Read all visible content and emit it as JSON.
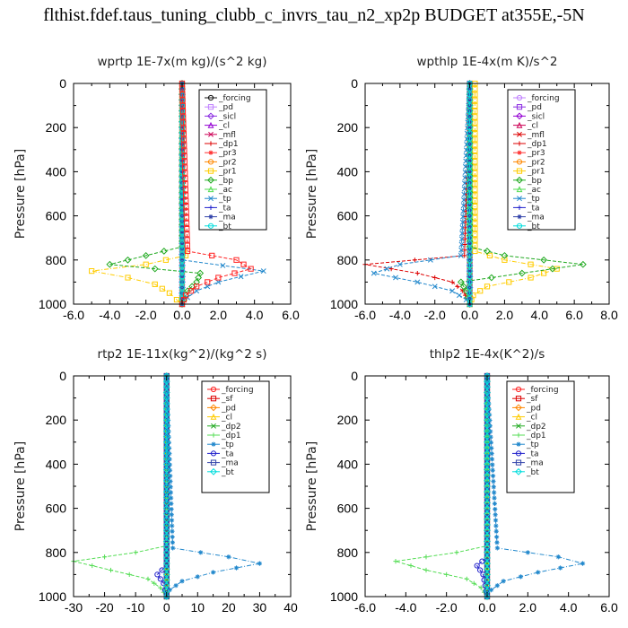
{
  "title": "flthist.fdef.taus_tuning_clubb_c_invrs_tau_n2_xp2p  BUDGET at355E,-5N",
  "chart_data": [
    {
      "type": "line",
      "title": "wprtp   1E-7x(m kg)/(s^2 kg)",
      "ylabel": "Pressure [hPa]",
      "xlim": [
        -6,
        6
      ],
      "ylim": [
        1000,
        0
      ],
      "xticks": [
        "-6.0",
        "-4.0",
        "-2.0",
        "0.0",
        "2.0",
        "4.0",
        "6.0"
      ],
      "yticks": [
        "0",
        "200",
        "400",
        "600",
        "800",
        "1000"
      ],
      "series": [
        {
          "name": "_forcing",
          "color": "#111111",
          "p": [
            0,
            100,
            200,
            300,
            400,
            500,
            600,
            700,
            800,
            900,
            1000
          ],
          "x": [
            0,
            0,
            0,
            0,
            0,
            0,
            0,
            0,
            0,
            0,
            0
          ]
        },
        {
          "name": "_pd",
          "color": "#c080ff",
          "p": [
            0,
            500,
            1000
          ],
          "x": [
            0,
            0,
            0
          ]
        },
        {
          "name": "_sicl",
          "color": "#8a2be2",
          "p": [
            0,
            500,
            1000
          ],
          "x": [
            0,
            0,
            0
          ]
        },
        {
          "name": "_cl",
          "color": "#9400d3",
          "p": [
            0,
            500,
            1000
          ],
          "x": [
            0,
            0,
            0
          ]
        },
        {
          "name": "_mfl",
          "color": "#cc0055",
          "p": [
            0,
            500,
            1000
          ],
          "x": [
            0,
            0,
            0
          ]
        },
        {
          "name": "_dp1",
          "color": "#dd0000",
          "p": [
            0,
            500,
            1000
          ],
          "x": [
            0,
            0,
            0
          ]
        },
        {
          "name": "_pr3",
          "color": "#ff3333",
          "p": [
            0,
            500,
            1000
          ],
          "x": [
            0,
            0,
            0
          ]
        },
        {
          "name": "_pr2",
          "color": "#ff8800",
          "p": [
            0,
            500,
            1000
          ],
          "x": [
            0,
            0,
            0
          ]
        },
        {
          "name": "_pr1",
          "color": "#ffcc00",
          "p": [
            0,
            740,
            780,
            820,
            850,
            880,
            910,
            950,
            980,
            1000
          ],
          "x": [
            0,
            0,
            0.2,
            -2.0,
            -5.0,
            -3.0,
            -1.5,
            -0.7,
            -0.3,
            0
          ]
        },
        {
          "name": "_bp",
          "color": "#22aa22",
          "p": [
            0,
            740,
            780,
            820,
            860,
            900,
            940,
            980,
            1000
          ],
          "x": [
            0,
            0,
            -2.0,
            -4.0,
            1.0,
            0.8,
            0.3,
            0.1,
            0
          ]
        },
        {
          "name": "_ac",
          "color": "#55dd55",
          "p": [
            0,
            500,
            1000
          ],
          "x": [
            0,
            0,
            0
          ]
        },
        {
          "name": "_tp",
          "color": "#2288cc",
          "p": [
            0,
            800,
            850,
            900,
            940,
            970,
            1000
          ],
          "x": [
            0,
            0,
            4.5,
            2.0,
            0.8,
            0.3,
            0
          ]
        },
        {
          "name": "_ta",
          "color": "#2222cc",
          "p": [
            0,
            500,
            1000
          ],
          "x": [
            0,
            0,
            0
          ]
        },
        {
          "name": "_ma",
          "color": "#3344aa",
          "p": [
            0,
            500,
            1000
          ],
          "x": [
            0,
            0,
            0
          ]
        },
        {
          "name": "_bt",
          "color": "#00dddd",
          "p": [
            0,
            500,
            1000
          ],
          "x": [
            0,
            0,
            0
          ]
        },
        {
          "name": "",
          "color": "#ff2222",
          "p": [
            0,
            760,
            800,
            840,
            880,
            920,
            960,
            1000
          ],
          "x": [
            0,
            0.3,
            3.0,
            3.8,
            2.0,
            0.8,
            0.2,
            0
          ]
        }
      ]
    },
    {
      "type": "line",
      "title": "wpthlp   1E-4x(m K)/s^2",
      "ylabel": "Pressure [hPa]",
      "xlim": [
        -6,
        8
      ],
      "ylim": [
        1000,
        0
      ],
      "xticks": [
        "-6.0",
        "-4.0",
        "-2.0",
        "0.0",
        "2.0",
        "4.0",
        "6.0",
        "8.0"
      ],
      "yticks": [
        "0",
        "200",
        "400",
        "600",
        "800",
        "1000"
      ],
      "series": [
        {
          "name": "_forcing",
          "color": "#c080ff",
          "p": [
            0,
            500,
            1000
          ],
          "x": [
            0,
            0,
            0
          ]
        },
        {
          "name": "_pd",
          "color": "#8a2be2",
          "p": [
            0,
            500,
            1000
          ],
          "x": [
            0,
            0,
            0
          ]
        },
        {
          "name": "_sicl",
          "color": "#9400d3",
          "p": [
            0,
            500,
            1000
          ],
          "x": [
            0,
            0,
            0
          ]
        },
        {
          "name": "_cl",
          "color": "#cc0055",
          "p": [
            0,
            500,
            1000
          ],
          "x": [
            0,
            0,
            0
          ]
        },
        {
          "name": "_mfl",
          "color": "#dd0000",
          "p": [
            0,
            500,
            1000
          ],
          "x": [
            0,
            0,
            0
          ]
        },
        {
          "name": "_dp1",
          "color": "#dd0000",
          "p": [
            0,
            780,
            820,
            860,
            900,
            940,
            980,
            1000
          ],
          "x": [
            0,
            -0.3,
            -6.0,
            -3.0,
            -1.0,
            -0.4,
            -0.1,
            0
          ]
        },
        {
          "name": "_pr3",
          "color": "#ff3333",
          "p": [
            0,
            500,
            1000
          ],
          "x": [
            0,
            0,
            0
          ]
        },
        {
          "name": "_pr2",
          "color": "#ff8800",
          "p": [
            0,
            500,
            1000
          ],
          "x": [
            0,
            0,
            0
          ]
        },
        {
          "name": "_pr1",
          "color": "#ffcc00",
          "p": [
            0,
            760,
            800,
            840,
            880,
            920,
            960,
            1000
          ],
          "x": [
            0.3,
            0.3,
            2.0,
            5.0,
            3.5,
            1.0,
            0.2,
            0
          ]
        },
        {
          "name": "_bp",
          "color": "#22aa22",
          "p": [
            0,
            740,
            780,
            820,
            860,
            900,
            940,
            1000
          ],
          "x": [
            0,
            0,
            2.0,
            6.5,
            3.0,
            -0.5,
            -0.2,
            0
          ]
        },
        {
          "name": "_ac",
          "color": "#55dd55",
          "p": [
            0,
            500,
            1000
          ],
          "x": [
            0,
            0,
            0
          ]
        },
        {
          "name": "_tp",
          "color": "#2288cc",
          "p": [
            0,
            780,
            820,
            860,
            900,
            940,
            980,
            1000
          ],
          "x": [
            0,
            -0.5,
            -4.0,
            -5.5,
            -3.0,
            -1.0,
            -0.2,
            0
          ]
        },
        {
          "name": "_ta",
          "color": "#2222cc",
          "p": [
            0,
            500,
            1000
          ],
          "x": [
            0,
            0,
            0
          ]
        },
        {
          "name": "_ma",
          "color": "#3344aa",
          "p": [
            0,
            500,
            1000
          ],
          "x": [
            0,
            0,
            0
          ]
        },
        {
          "name": "_bt",
          "color": "#00dddd",
          "p": [
            0,
            500,
            1000
          ],
          "x": [
            0,
            0,
            0
          ]
        }
      ]
    },
    {
      "type": "line",
      "title": "rtp2   1E-11x(kg^2)/(kg^2 s)",
      "ylabel": "Pressure [hPa]",
      "xlim": [
        -30,
        40
      ],
      "ylim": [
        1000,
        0
      ],
      "xticks": [
        "-30",
        "-20",
        "-10",
        "0",
        "10",
        "20",
        "30",
        "40"
      ],
      "yticks": [
        "0",
        "200",
        "400",
        "600",
        "800",
        "1000"
      ],
      "series": [
        {
          "name": "_forcing",
          "color": "#ff2222",
          "p": [
            0,
            500,
            1000
          ],
          "x": [
            0,
            0,
            0
          ]
        },
        {
          "name": "_sf",
          "color": "#dd0000",
          "p": [
            0,
            500,
            1000
          ],
          "x": [
            0,
            0,
            0
          ]
        },
        {
          "name": "_pd",
          "color": "#ff8800",
          "p": [
            0,
            500,
            1000
          ],
          "x": [
            0,
            0,
            0
          ]
        },
        {
          "name": "_cl",
          "color": "#ffcc00",
          "p": [
            0,
            500,
            1000
          ],
          "x": [
            0,
            0,
            0
          ]
        },
        {
          "name": "_dp2",
          "color": "#22aa22",
          "p": [
            0,
            500,
            1000
          ],
          "x": [
            0,
            0,
            0
          ]
        },
        {
          "name": "_dp1",
          "color": "#55dd55",
          "p": [
            0,
            770,
            800,
            840,
            880,
            920,
            960,
            1000
          ],
          "x": [
            0,
            0,
            -10.0,
            -30.0,
            -18.0,
            -6.0,
            -2.0,
            0
          ]
        },
        {
          "name": "_tp",
          "color": "#2288cc",
          "p": [
            0,
            780,
            820,
            850,
            890,
            930,
            970,
            1000
          ],
          "x": [
            0,
            2.0,
            20.0,
            30.0,
            15.0,
            5.0,
            1.0,
            0
          ]
        },
        {
          "name": "_ta",
          "color": "#2222cc",
          "p": [
            0,
            860,
            900,
            940,
            1000
          ],
          "x": [
            0,
            0,
            -3.0,
            -1.0,
            0
          ]
        },
        {
          "name": "_ma",
          "color": "#3344aa",
          "p": [
            0,
            500,
            1000
          ],
          "x": [
            0,
            0,
            0
          ]
        },
        {
          "name": "_bt",
          "color": "#00dddd",
          "p": [
            0,
            500,
            1000
          ],
          "x": [
            0,
            0,
            0
          ]
        }
      ]
    },
    {
      "type": "line",
      "title": "thlp2   1E-4x(K^2)/s",
      "ylabel": "Pressure [hPa]",
      "xlim": [
        -6,
        6
      ],
      "ylim": [
        1000,
        0
      ],
      "xticks": [
        "-6.0",
        "-4.0",
        "-2.0",
        "0.0",
        "2.0",
        "4.0",
        "6.0"
      ],
      "yticks": [
        "0",
        "200",
        "400",
        "600",
        "800",
        "1000"
      ],
      "series": [
        {
          "name": "_forcing",
          "color": "#ff2222",
          "p": [
            0,
            500,
            1000
          ],
          "x": [
            0,
            0,
            0
          ]
        },
        {
          "name": "_sf",
          "color": "#dd0000",
          "p": [
            0,
            500,
            1000
          ],
          "x": [
            0,
            0,
            0
          ]
        },
        {
          "name": "_pd",
          "color": "#ff8800",
          "p": [
            0,
            500,
            1000
          ],
          "x": [
            0,
            0,
            0
          ]
        },
        {
          "name": "_cl",
          "color": "#ffcc00",
          "p": [
            0,
            500,
            1000
          ],
          "x": [
            0,
            0,
            0
          ]
        },
        {
          "name": "_dp2",
          "color": "#22aa22",
          "p": [
            0,
            500,
            1000
          ],
          "x": [
            0,
            0,
            0
          ]
        },
        {
          "name": "_dp1",
          "color": "#55dd55",
          "p": [
            0,
            770,
            800,
            840,
            880,
            920,
            960,
            1000
          ],
          "x": [
            0,
            0,
            -1.5,
            -4.5,
            -3.0,
            -1.0,
            -0.3,
            0
          ]
        },
        {
          "name": "_tp",
          "color": "#2288cc",
          "p": [
            0,
            780,
            820,
            850,
            890,
            930,
            970,
            1000
          ],
          "x": [
            0,
            0.5,
            3.5,
            4.7,
            2.5,
            0.8,
            0.2,
            0
          ]
        },
        {
          "name": "_ta",
          "color": "#2222cc",
          "p": [
            0,
            820,
            860,
            900,
            1000
          ],
          "x": [
            0,
            0,
            -0.5,
            -0.2,
            0
          ]
        },
        {
          "name": "_ma",
          "color": "#3344aa",
          "p": [
            0,
            500,
            1000
          ],
          "x": [
            0,
            0,
            0
          ]
        },
        {
          "name": "_bt",
          "color": "#00dddd",
          "p": [
            0,
            500,
            1000
          ],
          "x": [
            0,
            0,
            0
          ]
        }
      ]
    }
  ]
}
